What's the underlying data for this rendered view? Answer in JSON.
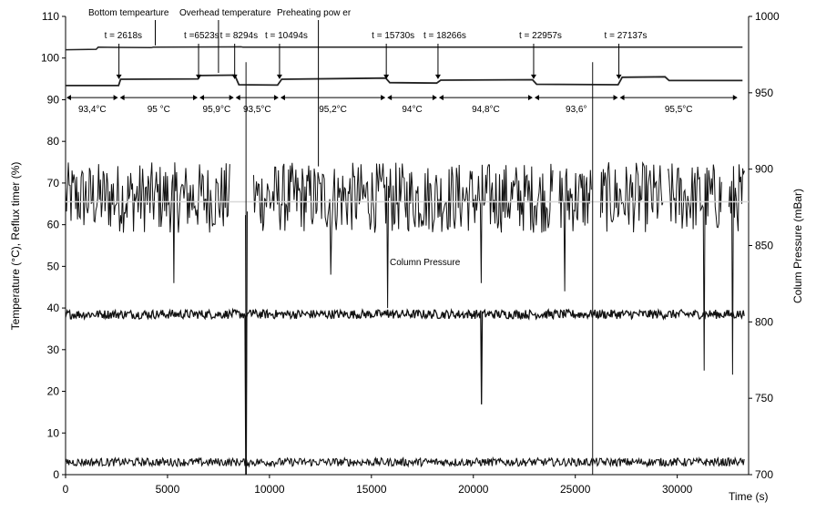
{
  "chart_data": {
    "type": "line",
    "x_unit_label": "Time (s)",
    "y_left_label": "Temperature (°C), Reflux timer (%)",
    "y_right_label": "Colum Pressure (mBar)",
    "xlim": [
      0,
      33500
    ],
    "x_ticks": [
      "0",
      "5000",
      "10000",
      "15000",
      "20000",
      "25000",
      "30000"
    ],
    "ylim_left": [
      0,
      110
    ],
    "y_ticks_left": [
      "0",
      "10",
      "20",
      "30",
      "40",
      "50",
      "60",
      "70",
      "80",
      "90",
      "100",
      "110"
    ],
    "ylim_right": [
      700,
      1000
    ],
    "y_ticks_right": [
      "700",
      "750",
      "800",
      "850",
      "900",
      "950",
      "1000"
    ],
    "grid": false,
    "legend": "none",
    "series_labels": {
      "bottom": "Bottom tempearture",
      "overhead": "Overhead temperature",
      "preheating": "Preheating pow er",
      "pressure": "Column Pressure"
    },
    "time_markers": [
      {
        "t": 2618,
        "label": "t  = 2618s"
      },
      {
        "t": 6523,
        "label": "t =6523s"
      },
      {
        "t": 8294,
        "label": "t = 8294s"
      },
      {
        "t": 10494,
        "label": "t = 10494s"
      },
      {
        "t": 15730,
        "label": "t  = 15730s"
      },
      {
        "t": 18266,
        "label": "t = 18266s"
      },
      {
        "t": 22957,
        "label": "t  = 22957s"
      },
      {
        "t": 27137,
        "label": "t = 27137s"
      }
    ],
    "segments": [
      {
        "from": 0,
        "to": 2618,
        "label": "93,4°C"
      },
      {
        "from": 2618,
        "to": 6523,
        "label": "95 °C"
      },
      {
        "from": 6523,
        "to": 8294,
        "label": "95,9°C"
      },
      {
        "from": 8294,
        "to": 10494,
        "label": "93,5°C"
      },
      {
        "from": 10494,
        "to": 15730,
        "label": "95,2°C"
      },
      {
        "from": 15730,
        "to": 18266,
        "label": "94°C"
      },
      {
        "from": 18266,
        "to": 22957,
        "label": "94,8°C"
      },
      {
        "from": 22957,
        "to": 27137,
        "label": "93,6°"
      },
      {
        "from": 27137,
        "to": 33000,
        "label": "95,5°C"
      }
    ],
    "series": [
      {
        "name": "Bottom tempearture",
        "axis": "left",
        "x": [
          0,
          2600,
          2700,
          6500,
          6600,
          8300,
          8500,
          10400,
          10600,
          15700,
          15900,
          18200,
          18400,
          22900,
          23100,
          27100,
          27300,
          29400,
          29600,
          33200
        ],
        "values": [
          93.4,
          93.4,
          94.9,
          95.0,
          95.8,
          95.9,
          93.6,
          93.5,
          94.9,
          95.2,
          94.1,
          94.0,
          94.7,
          94.8,
          93.7,
          93.6,
          95.4,
          95.5,
          94.6,
          94.6
        ]
      },
      {
        "name": "Overhead temperature",
        "axis": "left",
        "x": [
          0,
          1500,
          1600,
          4200,
          4300,
          8600,
          8700,
          33200
        ],
        "values": [
          102,
          102.1,
          102.6,
          102.5,
          102.6,
          102.7,
          102.6,
          102.6
        ]
      },
      {
        "name": "Reflux timer",
        "axis": "left",
        "band": [
          58,
          75
        ],
        "gaps": [
          [
            8100,
            8800
          ],
          [
            8950,
            9200
          ],
          [
            23900,
            24200
          ],
          [
            25800,
            26200
          ],
          [
            29300,
            29500
          ],
          [
            32200,
            32500
          ]
        ],
        "x": [
          5300,
          8850,
          13000,
          15800,
          20400,
          24500,
          31300,
          32700
        ],
        "values": [
          46,
          0,
          48,
          40,
          46,
          44,
          25,
          24
        ]
      },
      {
        "name": "Column Pressure",
        "axis": "right",
        "band": [
          802,
          808
        ],
        "x": [
          0,
          8000,
          8100,
          8850,
          9200,
          15800,
          20400,
          24500,
          25800,
          29500,
          31300,
          33200
        ],
        "values": [
          803,
          804,
          805,
          700,
          808,
          808,
          746,
          783,
          805,
          810,
          785,
          805
        ]
      },
      {
        "name": "Preheating pow er",
        "axis": "left",
        "band": [
          2,
          4
        ],
        "x": [
          0,
          8700,
          8900,
          20500,
          29500,
          33000,
          33300
        ],
        "values": [
          3,
          3,
          3,
          5,
          4,
          3,
          9
        ]
      }
    ]
  }
}
